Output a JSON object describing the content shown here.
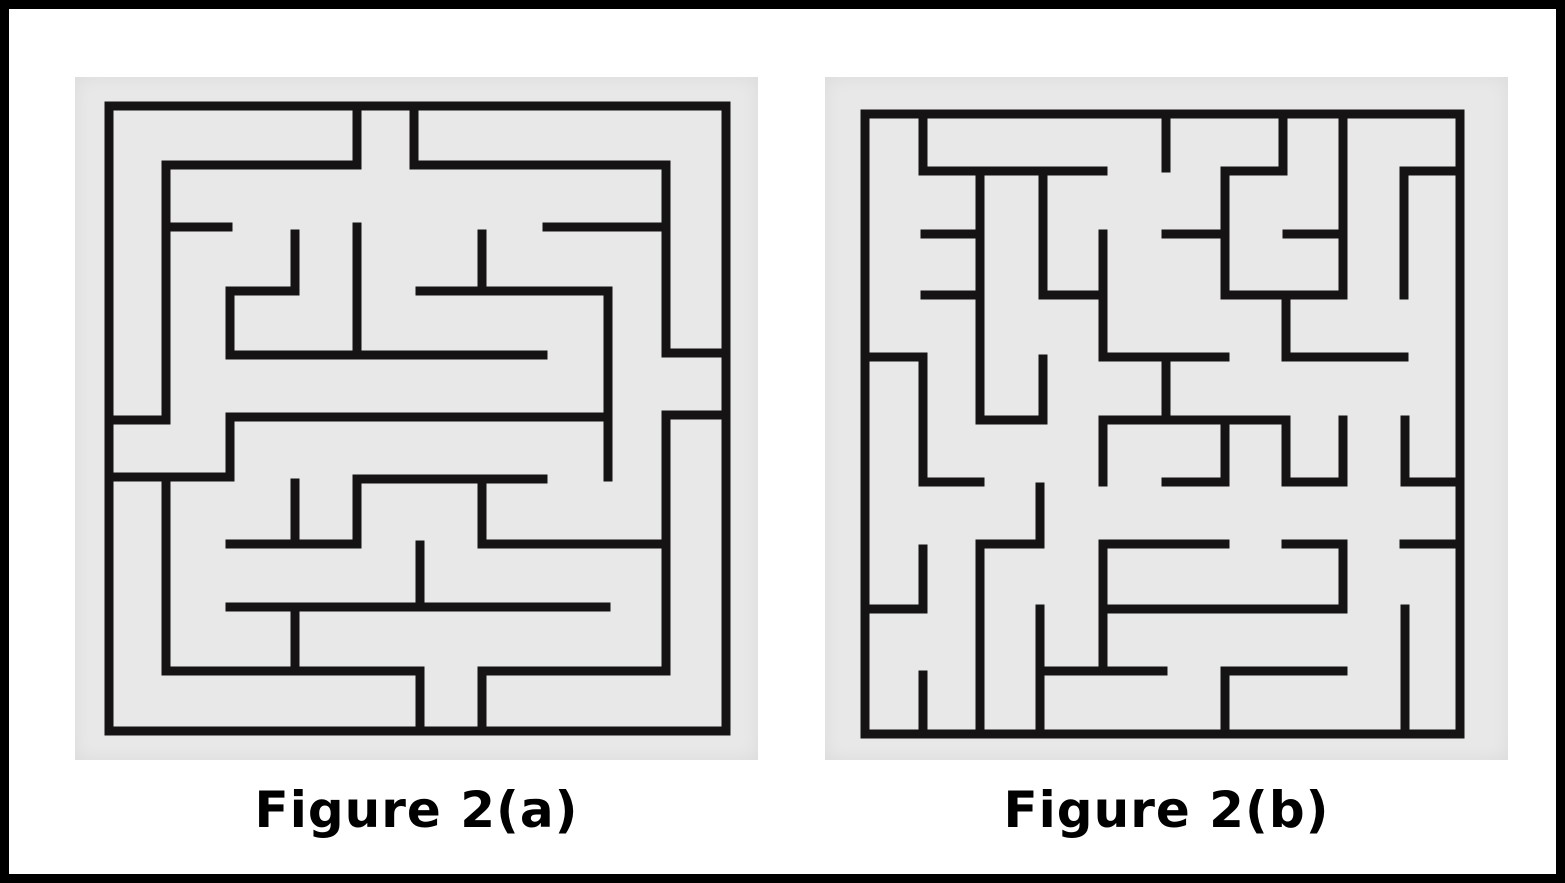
{
  "colors": {
    "background": "#ffffff",
    "frame": "#000000",
    "paper": "#e8e8e8",
    "wall": "#151313",
    "caption": "#000000"
  },
  "figures": [
    {
      "id": "a",
      "caption": "Figure 2(a)",
      "description": "maze"
    },
    {
      "id": "b",
      "caption": "Figure 2(b)",
      "description": "maze"
    }
  ]
}
